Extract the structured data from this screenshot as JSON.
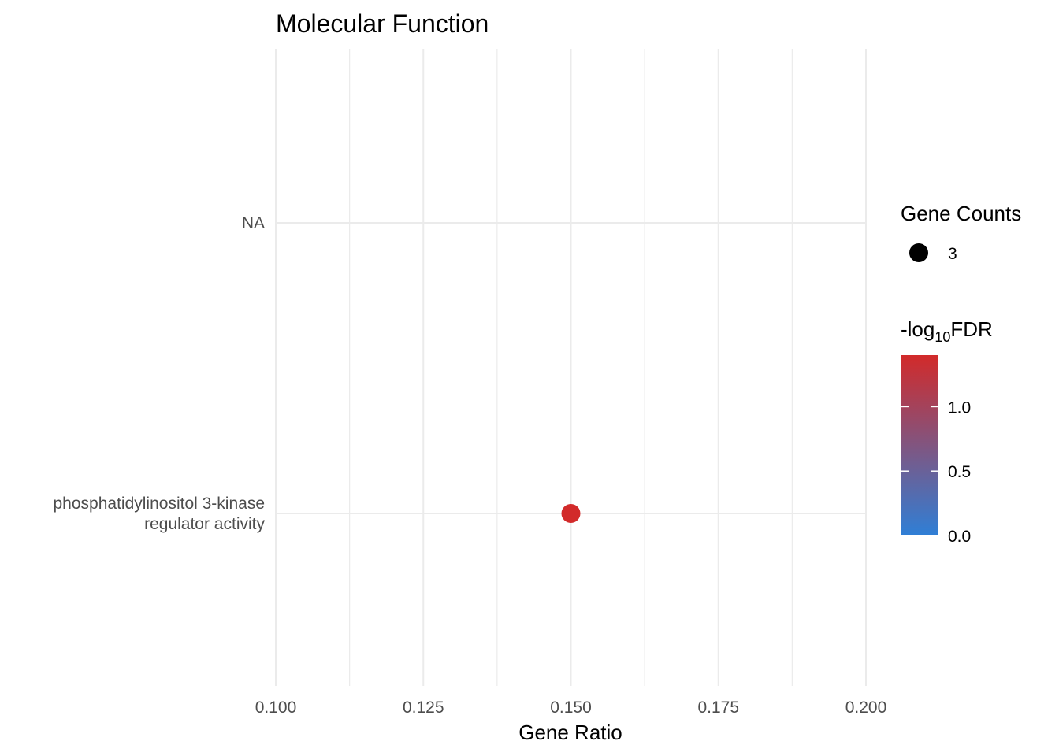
{
  "chart_data": {
    "type": "scatter",
    "title": "Molecular Function",
    "xlabel": "Gene Ratio",
    "ylabel": "",
    "xlim": [
      0.1,
      0.2
    ],
    "x_ticks": [
      "0.100",
      "0.125",
      "0.150",
      "0.175",
      "0.200"
    ],
    "x_tick_values": [
      0.1,
      0.125,
      0.15,
      0.175,
      0.2
    ],
    "categories": [
      "phosphatidylinositol 3-kinase regulator activity",
      "NA"
    ],
    "category_label_lines": [
      [
        "phosphatidylinositol 3-kinase",
        "regulator activity"
      ],
      [
        "NA"
      ]
    ],
    "points": [
      {
        "category": "phosphatidylinositol 3-kinase regulator activity",
        "gene_ratio": 0.15,
        "gene_count": 3,
        "neg_log10_fdr": 1.4
      }
    ],
    "grid": true,
    "legend_position": "right",
    "size_legend": {
      "title": "Gene Counts",
      "entries": [
        {
          "label": "3",
          "value": 3
        }
      ]
    },
    "color_legend": {
      "title_prefix": "-log",
      "title_subscript": "10",
      "title_suffix": "FDR",
      "range": [
        0,
        1.4
      ],
      "ticks": [
        {
          "label": "1.0",
          "value": 1.0
        },
        {
          "label": "0.5",
          "value": 0.5
        },
        {
          "label": "0.0",
          "value": 0.0
        }
      ],
      "low_color": "#2f7fd6",
      "high_color": "#d22a2a"
    }
  }
}
